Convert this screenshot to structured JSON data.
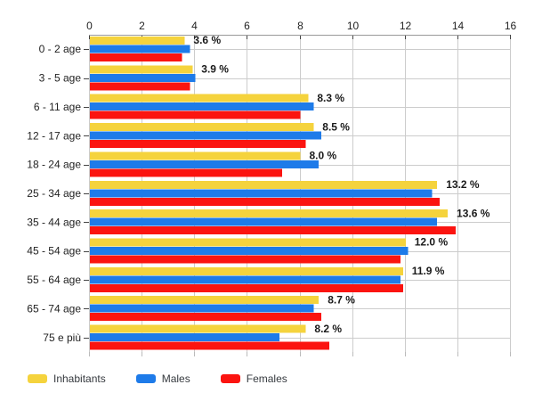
{
  "chart_data": {
    "type": "bar",
    "orientation": "horizontal",
    "title": "",
    "xlabel": "",
    "ylabel": "",
    "xlim": [
      0,
      16
    ],
    "x_ticks": [
      0,
      2,
      4,
      6,
      8,
      10,
      12,
      14,
      16
    ],
    "grid": true,
    "legend_position": "bottom-left",
    "categories": [
      "0 - 2 age",
      "3 - 5 age",
      "6 - 11 age",
      "12 - 17 age",
      "18 - 24 age",
      "25 - 34 age",
      "35 - 44 age",
      "45 - 54 age",
      "55 - 64 age",
      "65 - 74 age",
      "75 e più"
    ],
    "series": [
      {
        "name": "Inhabitants",
        "color": "#f5d33d",
        "values": [
          3.6,
          3.9,
          8.3,
          8.5,
          8.0,
          13.2,
          13.6,
          12.0,
          11.9,
          8.7,
          8.2
        ]
      },
      {
        "name": "Males",
        "color": "#1e7be9",
        "values": [
          3.8,
          4.0,
          8.5,
          8.8,
          8.7,
          13.0,
          13.2,
          12.1,
          11.8,
          8.5,
          7.2
        ]
      },
      {
        "name": "Females",
        "color": "#fb1410",
        "values": [
          3.5,
          3.8,
          8.0,
          8.2,
          7.3,
          13.3,
          13.9,
          11.8,
          11.9,
          8.8,
          9.1
        ]
      }
    ],
    "value_labels": [
      "3.6 %",
      "3.9 %",
      "8.3 %",
      "8.5 %",
      "8.0 %",
      "13.2 %",
      "13.6 %",
      "12.0 %",
      "11.9 %",
      "8.7 %",
      "8.2 %"
    ],
    "colors": {
      "grid": "#cccccc",
      "axis_line": "#999999",
      "axis_tick": "#444444",
      "bottom_tick": "#bbbbbb",
      "text": "#222222",
      "value_label": "#1a1a1a"
    }
  }
}
